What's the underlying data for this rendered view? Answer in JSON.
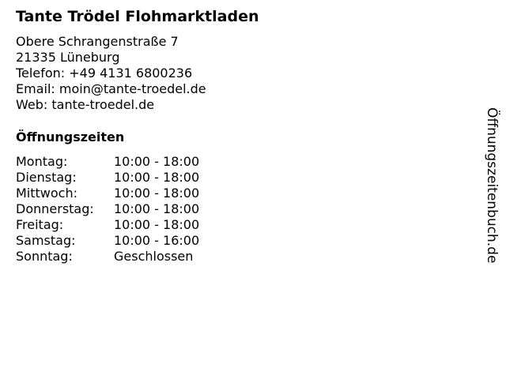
{
  "title": "Tante Trödel Flohmarktladen",
  "address": [
    "Obere Schrangenstraße 7",
    "21335 Lüneburg",
    "Telefon: +49 4131 6800236",
    "Email: moin@tante-troedel.de",
    "Web: tante-troedel.de"
  ],
  "hours_title": "Öffnungszeiten",
  "hours": [
    {
      "day": "Montag:",
      "time": "10:00 - 18:00"
    },
    {
      "day": "Dienstag:",
      "time": "10:00 - 18:00"
    },
    {
      "day": "Mittwoch:",
      "time": "10:00 - 18:00"
    },
    {
      "day": "Donnerstag:",
      "time": "10:00 - 18:00"
    },
    {
      "day": "Freitag:",
      "time": "10:00 - 18:00"
    },
    {
      "day": "Samstag:",
      "time": "10:00 - 16:00"
    },
    {
      "day": "Sonntag:",
      "time": "Geschlossen"
    }
  ],
  "side_label": "Öffnungszeitenbuch.de"
}
